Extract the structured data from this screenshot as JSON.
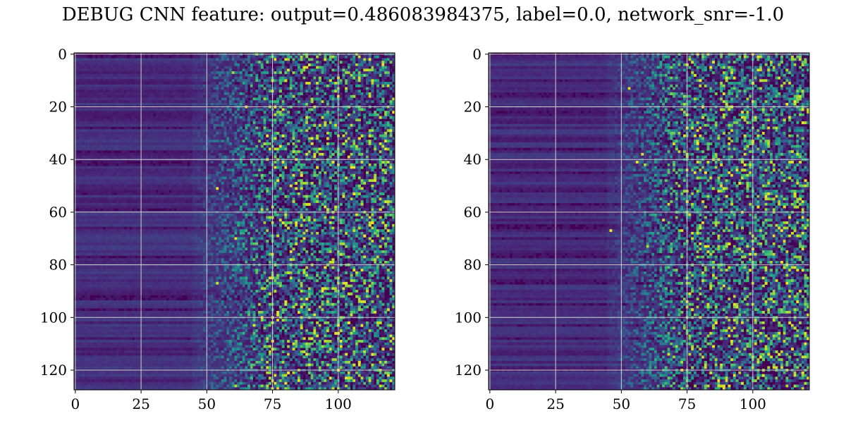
{
  "title": "DEBUG CNN feature: output=0.486083984375, label=0.0, network_snr=-1.0",
  "chart_data": [
    {
      "type": "heatmap",
      "title": "",
      "xlabel": "",
      "ylabel": "",
      "rows": 128,
      "cols": 122,
      "xlim": [
        -0.5,
        121.5
      ],
      "ylim": [
        127.5,
        -0.5
      ],
      "xticks": [
        0,
        25,
        50,
        75,
        100
      ],
      "yticks": [
        0,
        20,
        40,
        60,
        80,
        100,
        120
      ],
      "grid": true,
      "colormap": "viridis",
      "random_seed": 7
    },
    {
      "type": "heatmap",
      "title": "",
      "xlabel": "",
      "ylabel": "",
      "rows": 128,
      "cols": 122,
      "xlim": [
        -0.5,
        121.5
      ],
      "ylim": [
        127.5,
        -0.5
      ],
      "xticks": [
        0,
        25,
        50,
        75,
        100
      ],
      "yticks": [
        0,
        20,
        40,
        60,
        80,
        100,
        120
      ],
      "grid": true,
      "colormap": "viridis",
      "random_seed": 19
    }
  ]
}
